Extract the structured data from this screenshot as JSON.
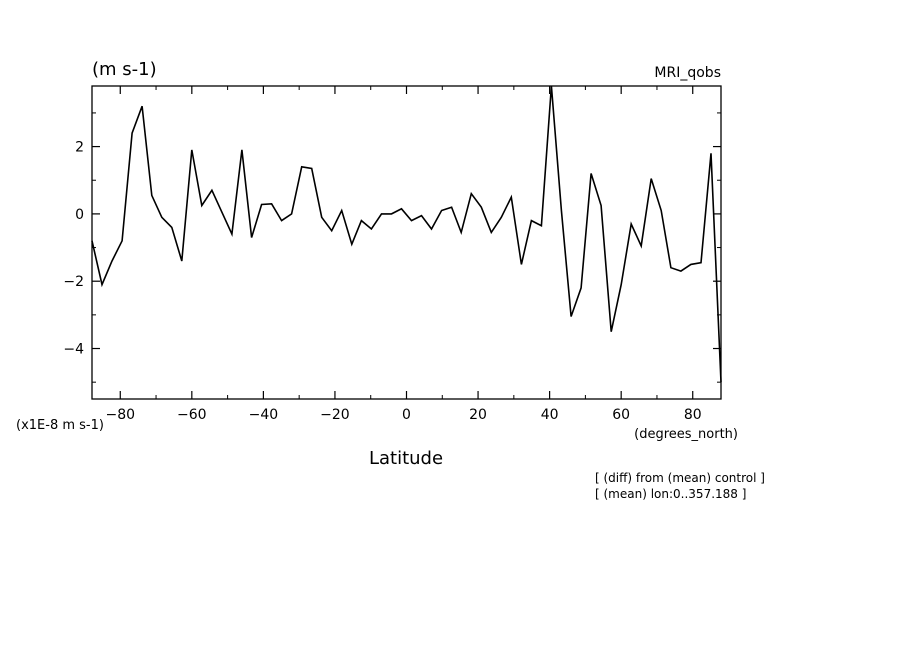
{
  "chart_data": {
    "type": "line",
    "title_left": "(m s-1)",
    "title_right": "MRI_qobs",
    "xlabel": "Latitude",
    "xunit": "(degrees_north)",
    "yscale_note": "(x1E-8 m s-1)",
    "annotations": [
      "[ (diff) from (mean) control ]",
      "[ (mean) lon:0..357.188 ]"
    ],
    "xlim": [
      -87.9,
      87.9
    ],
    "ylim": [
      -5.5,
      3.8
    ],
    "xticks": [
      -80,
      -60,
      -40,
      -20,
      0,
      20,
      40,
      60,
      80
    ],
    "xtick_labels": [
      "-80",
      "-60",
      "-40",
      "-20",
      "0",
      "20",
      "40",
      "60",
      "80"
    ],
    "yticks": [
      -4,
      -2,
      0,
      2
    ],
    "ytick_labels": [
      "-4",
      "-2",
      "0",
      "2"
    ],
    "grid": false,
    "line_color": "#000000",
    "series": [
      {
        "x": [
          -87.9,
          -85.1,
          -82.3,
          -79.5,
          -76.7,
          -73.9,
          -71.2,
          -68.4,
          -65.6,
          -62.8,
          -60.0,
          -57.2,
          -54.4,
          -51.6,
          -48.8,
          -46.0,
          -43.3,
          -40.5,
          -37.7,
          -34.9,
          -32.1,
          -29.3,
          -26.5,
          -23.7,
          -20.9,
          -18.1,
          -15.3,
          -12.6,
          -9.8,
          -7.0,
          -4.2,
          -1.4,
          1.4,
          4.2,
          7.0,
          9.8,
          12.6,
          15.3,
          18.1,
          20.9,
          23.7,
          26.5,
          29.3,
          32.1,
          34.9,
          37.7,
          40.5,
          43.3,
          46.0,
          48.8,
          51.6,
          54.4,
          57.2,
          60.0,
          62.8,
          65.6,
          68.4,
          71.2,
          73.9,
          76.7,
          79.5,
          82.3,
          85.1,
          87.9
        ],
        "y": [
          -0.8,
          -2.1,
          -1.4,
          -0.8,
          2.4,
          3.2,
          0.55,
          -0.1,
          -0.4,
          -1.4,
          1.9,
          0.25,
          0.7,
          0.05,
          -0.6,
          1.9,
          -0.7,
          0.28,
          0.3,
          -0.2,
          0.0,
          1.4,
          1.35,
          -0.1,
          -0.5,
          0.1,
          -0.9,
          -0.2,
          -0.45,
          0.0,
          0.0,
          0.15,
          -0.2,
          -0.05,
          -0.45,
          0.1,
          0.2,
          -0.55,
          0.6,
          0.2,
          -0.55,
          -0.1,
          0.5,
          -1.5,
          -0.2,
          -0.35,
          3.8,
          0.1,
          -3.05,
          -2.2,
          1.2,
          0.25,
          -3.5,
          -2.1,
          -0.3,
          -0.95,
          1.05,
          0.1,
          -1.6,
          -1.7,
          -1.5,
          -1.45,
          1.8,
          -5.0
        ]
      }
    ]
  }
}
